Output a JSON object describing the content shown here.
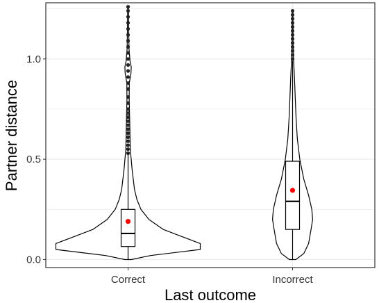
{
  "chart_data": {
    "type": "violin",
    "xlabel": "Last outcome",
    "ylabel": "Partner distance",
    "ylim": [
      -0.04,
      1.28
    ],
    "yticks": [
      0.0,
      0.5,
      1.0
    ],
    "ytick_labels": [
      "0.0",
      "0.5",
      "1.0"
    ],
    "categories": [
      "Correct",
      "Incorrect"
    ],
    "grid": true,
    "colors": {
      "outline": "#000000",
      "mean_point": "#ff0000",
      "grid": "#ebebeb",
      "panel_border": "#333333"
    },
    "groups": [
      {
        "category": "Correct",
        "box": {
          "q1": 0.065,
          "median": 0.13,
          "q3": 0.25,
          "whisker_low": 0.0,
          "whisker_high": 0.53
        },
        "mean": 0.19,
        "outliers": [
          0.53,
          0.55,
          0.57,
          0.59,
          0.61,
          0.63,
          0.65,
          0.67,
          0.69,
          0.71,
          0.73,
          0.75,
          0.78,
          0.81,
          0.85,
          0.88,
          0.91,
          0.94,
          0.97,
          1.0,
          1.03,
          1.06,
          1.09,
          1.12,
          1.15,
          1.18,
          1.21,
          1.24,
          1.26
        ],
        "density": [
          [
            0.0,
            0.02
          ],
          [
            0.02,
            0.14
          ],
          [
            0.05,
            0.45
          ],
          [
            0.08,
            0.45
          ],
          [
            0.11,
            0.35
          ],
          [
            0.15,
            0.22
          ],
          [
            0.2,
            0.13
          ],
          [
            0.25,
            0.08
          ],
          [
            0.3,
            0.055
          ],
          [
            0.35,
            0.04
          ],
          [
            0.45,
            0.025
          ],
          [
            0.55,
            0.014
          ],
          [
            0.7,
            0.01
          ],
          [
            0.8,
            0.007
          ],
          [
            0.88,
            0.008
          ],
          [
            0.93,
            0.018
          ],
          [
            0.96,
            0.02
          ],
          [
            0.99,
            0.012
          ],
          [
            1.05,
            0.006
          ],
          [
            1.15,
            0.004
          ],
          [
            1.26,
            0.002
          ]
        ]
      },
      {
        "category": "Incorrect",
        "box": {
          "q1": 0.15,
          "median": 0.29,
          "q3": 0.49,
          "whisker_low": 0.0,
          "whisker_high": 0.99
        },
        "mean": 0.345,
        "outliers": [
          1.0,
          1.02,
          1.04,
          1.06,
          1.08,
          1.1,
          1.12,
          1.14,
          1.16,
          1.18,
          1.2,
          1.22,
          1.24
        ],
        "density": [
          [
            0.0,
            0.02
          ],
          [
            0.03,
            0.07
          ],
          [
            0.08,
            0.1
          ],
          [
            0.15,
            0.115
          ],
          [
            0.2,
            0.125
          ],
          [
            0.25,
            0.12
          ],
          [
            0.32,
            0.1
          ],
          [
            0.4,
            0.07
          ],
          [
            0.5,
            0.045
          ],
          [
            0.6,
            0.03
          ],
          [
            0.7,
            0.022
          ],
          [
            0.8,
            0.017
          ],
          [
            0.9,
            0.012
          ],
          [
            1.0,
            0.006
          ],
          [
            1.1,
            0.003
          ],
          [
            1.24,
            0.002
          ]
        ]
      }
    ]
  }
}
